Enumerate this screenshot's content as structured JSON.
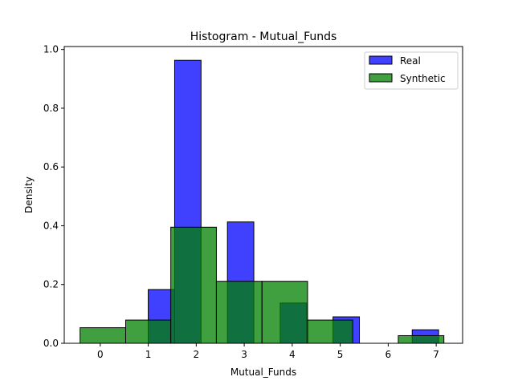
{
  "chart_data": {
    "type": "bar",
    "title": "Histogram - Mutual_Funds",
    "xlabel": "Mutual_Funds",
    "ylabel": "Density",
    "xlim": [
      -0.75,
      7.55
    ],
    "ylim": [
      0,
      1.01
    ],
    "xticks": [
      0,
      1,
      2,
      3,
      4,
      5,
      6,
      7
    ],
    "yticks": [
      0.0,
      0.2,
      0.4,
      0.6,
      0.8,
      1.0
    ],
    "grid": false,
    "legend_position": "top-right",
    "series": [
      {
        "name": "Real",
        "color": "#0000ff",
        "alpha": 0.75,
        "bins": [
          {
            "x0": 1.0,
            "x1": 1.55,
            "y": 0.183
          },
          {
            "x0": 1.55,
            "x1": 2.1,
            "y": 0.963
          },
          {
            "x0": 2.1,
            "x1": 2.65,
            "y": 0.0
          },
          {
            "x0": 2.65,
            "x1": 3.2,
            "y": 0.413
          },
          {
            "x0": 3.2,
            "x1": 3.75,
            "y": 0.0
          },
          {
            "x0": 3.75,
            "x1": 4.3,
            "y": 0.137
          },
          {
            "x0": 4.3,
            "x1": 4.85,
            "y": 0.0
          },
          {
            "x0": 4.85,
            "x1": 5.4,
            "y": 0.09
          },
          {
            "x0": 5.4,
            "x1": 5.95,
            "y": 0.0
          },
          {
            "x0": 5.95,
            "x1": 6.5,
            "y": 0.0
          },
          {
            "x0": 6.5,
            "x1": 7.05,
            "y": 0.046
          }
        ]
      },
      {
        "name": "Synthetic",
        "color": "#008000",
        "alpha": 0.75,
        "bins": [
          {
            "x0": -0.42,
            "x1": 0.53,
            "y": 0.053
          },
          {
            "x0": 0.53,
            "x1": 1.47,
            "y": 0.079
          },
          {
            "x0": 1.47,
            "x1": 2.42,
            "y": 0.395
          },
          {
            "x0": 2.42,
            "x1": 3.37,
            "y": 0.211
          },
          {
            "x0": 3.37,
            "x1": 4.32,
            "y": 0.211
          },
          {
            "x0": 4.32,
            "x1": 5.26,
            "y": 0.079
          },
          {
            "x0": 5.26,
            "x1": 6.21,
            "y": 0.0
          },
          {
            "x0": 6.21,
            "x1": 7.16,
            "y": 0.026
          }
        ]
      }
    ]
  }
}
